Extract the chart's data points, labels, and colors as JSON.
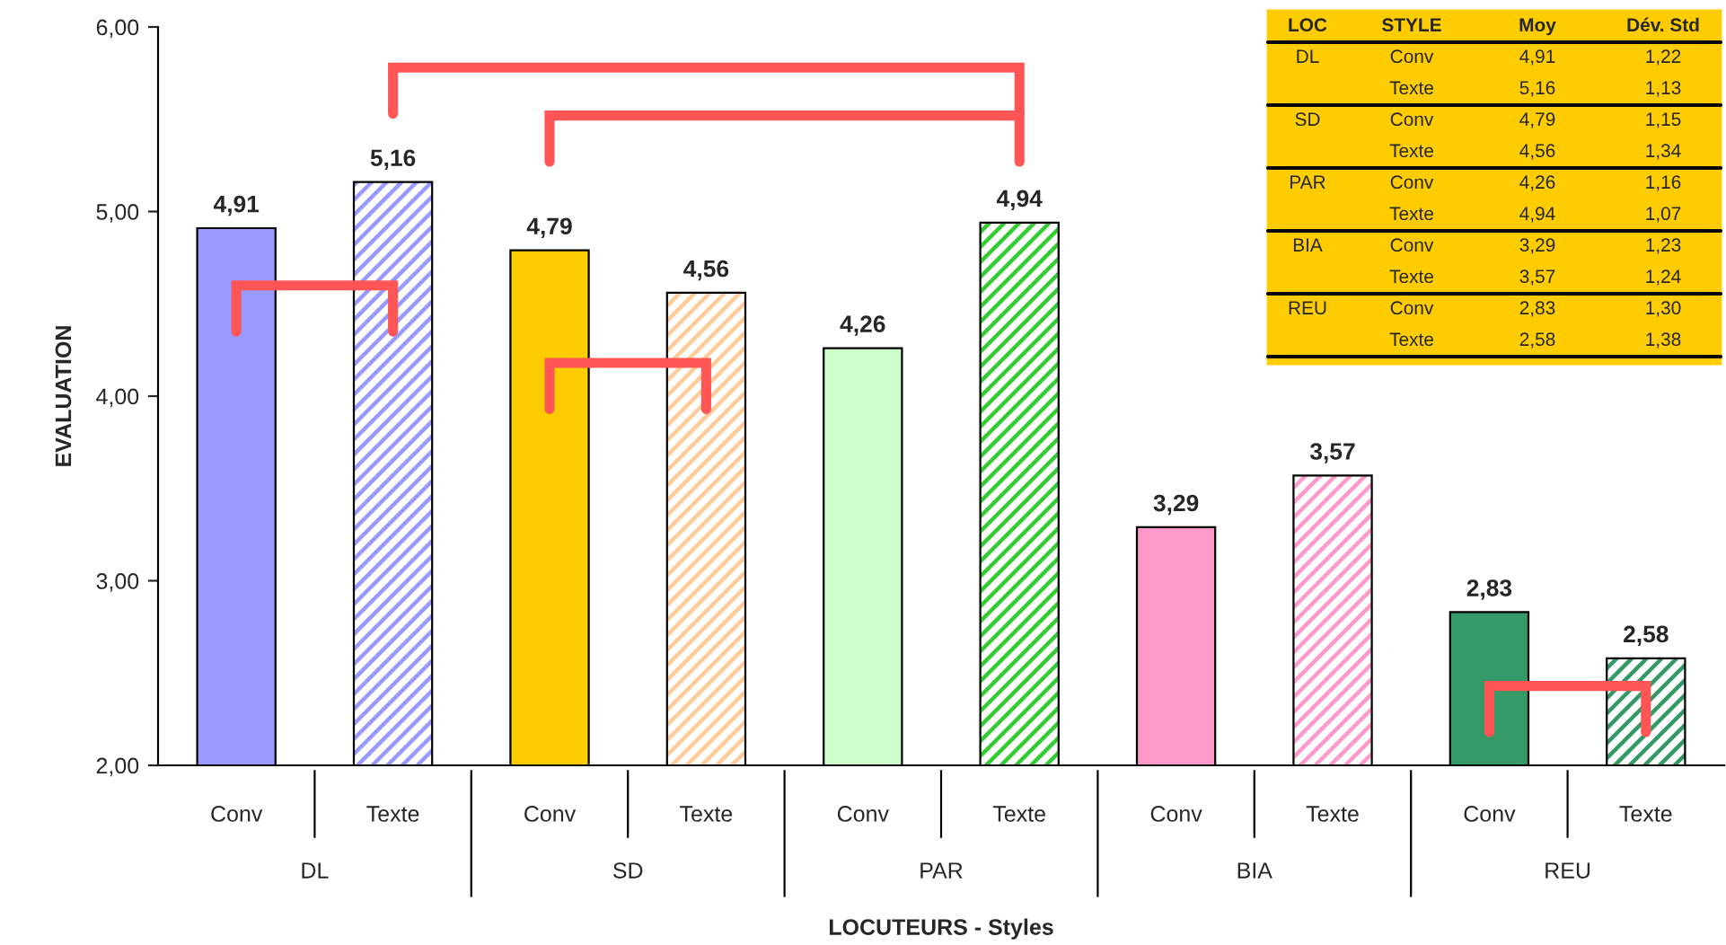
{
  "chart_data": {
    "type": "bar",
    "xlabel": "LOCUTEURS - Styles",
    "ylabel": "EVALUATION",
    "categories": [
      "Conv",
      "Texte",
      "Conv",
      "Texte",
      "Conv",
      "Texte",
      "Conv",
      "Texte",
      "Conv",
      "Texte"
    ],
    "values": [
      4.91,
      5.16,
      4.79,
      4.56,
      4.26,
      4.94,
      3.29,
      3.57,
      2.83,
      2.58
    ],
    "value_labels": [
      "4,91",
      "5,16",
      "4,79",
      "4,56",
      "4,26",
      "4,94",
      "3,29",
      "3,57",
      "2,83",
      "2,58"
    ],
    "colors": [
      "#9999ff",
      "#9999ff",
      "#ffcc00",
      "#ffcc99",
      "#ccffcc",
      "#33cc33",
      "#ff99cc",
      "#ff99cc",
      "#339966",
      "#339966"
    ],
    "ylim": [
      2,
      6
    ],
    "yticks": [
      {
        "value": 2,
        "label": "2,00"
      },
      {
        "value": 3,
        "label": "3,00"
      },
      {
        "value": 4,
        "label": "4,00"
      },
      {
        "value": 5,
        "label": "5,00"
      },
      {
        "value": 6,
        "label": "6,00"
      }
    ],
    "grid": false,
    "legend": false,
    "annotations": [
      "DL",
      "SD",
      "PAR",
      "BIA",
      "REU",
      "LOC",
      "STYLE",
      "Moy",
      "Dév. Std",
      "1,22",
      "1,13",
      "1,15",
      "1,34",
      "1,16",
      "1,07",
      "1,23",
      "1,24",
      "1,30",
      "1,38"
    ]
  }
}
